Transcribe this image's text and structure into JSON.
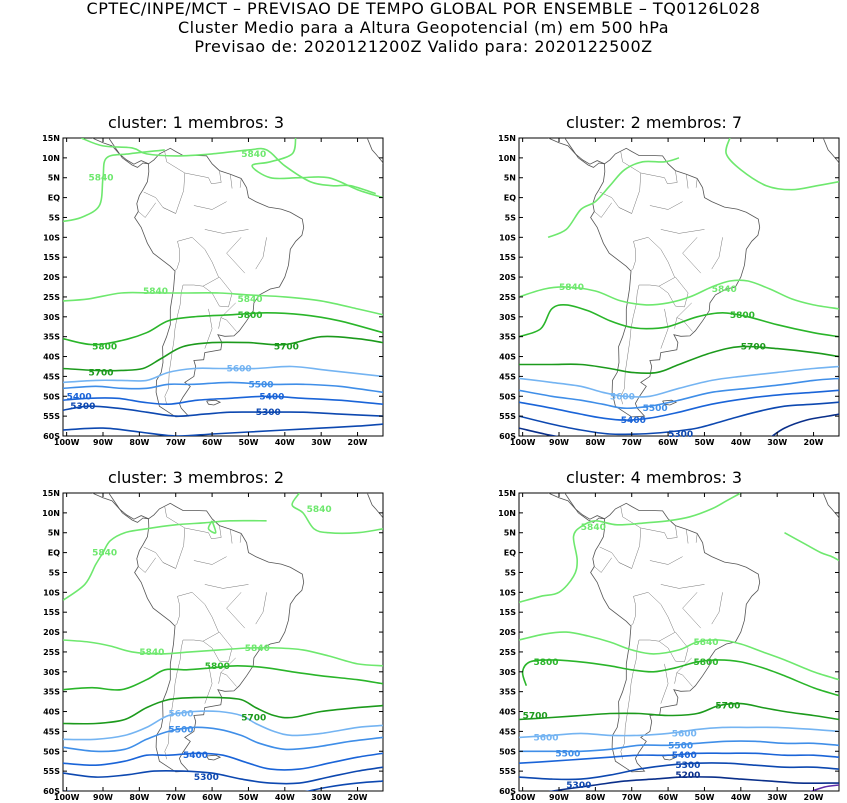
{
  "header": {
    "line1": "CPTEC/INPE/MCT – PREVISAO DE TEMPO GLOBAL POR ENSEMBLE – TQ0126L028",
    "line2": "Cluster Medio para a Altura Geopotencial (m) em 500 hPa",
    "line3": "Previsao de: 2020121200Z    Valido para: 2020122500Z"
  },
  "axes": {
    "lat_labels": [
      "15N",
      "10N",
      "5N",
      "EQ",
      "5S",
      "10S",
      "15S",
      "20S",
      "25S",
      "30S",
      "35S",
      "40S",
      "45S",
      "50S",
      "55S",
      "60S"
    ],
    "lon_labels": [
      "100W",
      "90W",
      "80W",
      "70W",
      "60W",
      "50W",
      "40W",
      "30W",
      "20W"
    ]
  },
  "colors": {
    "c5840": "#6ee86e",
    "c5800": "#2ab52a",
    "c5700": "#1c9a1c",
    "c5600": "#74b4f2",
    "c5500": "#3f8ee8",
    "c5400": "#1a64d8",
    "c5300": "#0d48b0",
    "c5200": "#0a2f8a",
    "c5100": "#5e2ba8"
  },
  "panels": [
    {
      "title": "cluster: 1   membros: 3",
      "labels": [
        {
          "text": "5840",
          "lon": -52,
          "lat": 11,
          "c": "c5840"
        },
        {
          "text": "5840",
          "lon": -94,
          "lat": 5,
          "c": "c5840"
        },
        {
          "text": "5840",
          "lon": -79,
          "lat": -23.5,
          "c": "c5840"
        },
        {
          "text": "5840",
          "lon": -53,
          "lat": -25.5,
          "c": "c5840"
        },
        {
          "text": "5800",
          "lon": -53,
          "lat": -29.5,
          "c": "c5800"
        },
        {
          "text": "5800",
          "lon": -93,
          "lat": -37.5,
          "c": "c5800"
        },
        {
          "text": "5700",
          "lon": -43,
          "lat": -37.5,
          "c": "c5700"
        },
        {
          "text": "5700",
          "lon": -94,
          "lat": -44,
          "c": "c5700"
        },
        {
          "text": "5600",
          "lon": -56,
          "lat": -43,
          "c": "c5600"
        },
        {
          "text": "5500",
          "lon": -50,
          "lat": -47,
          "c": "c5500"
        },
        {
          "text": "5400",
          "lon": -100,
          "lat": -50,
          "c": "c5400"
        },
        {
          "text": "5400",
          "lon": -47,
          "lat": -50,
          "c": "c5400"
        },
        {
          "text": "5300",
          "lon": -99,
          "lat": -52.5,
          "c": "c5300"
        },
        {
          "text": "5300",
          "lon": -48,
          "lat": -54,
          "c": "c5300"
        }
      ]
    },
    {
      "title": "cluster: 2   membros: 7",
      "labels": [
        {
          "text": "5840",
          "lon": -48,
          "lat": -23,
          "c": "c5840"
        },
        {
          "text": "5840",
          "lon": -90,
          "lat": -22.5,
          "c": "c5840"
        },
        {
          "text": "5800",
          "lon": -43,
          "lat": -29.5,
          "c": "c5800"
        },
        {
          "text": "5700",
          "lon": -40,
          "lat": -37.5,
          "c": "c5700"
        },
        {
          "text": "5600",
          "lon": -76,
          "lat": -50,
          "c": "c5600"
        },
        {
          "text": "5500",
          "lon": -67,
          "lat": -53,
          "c": "c5500"
        },
        {
          "text": "5400",
          "lon": -73,
          "lat": -56,
          "c": "c5400"
        },
        {
          "text": "5300",
          "lon": -60,
          "lat": -59.5,
          "c": "c5300"
        }
      ]
    },
    {
      "title": "cluster: 3   membros: 2",
      "labels": [
        {
          "text": "5840",
          "lon": -34,
          "lat": 11,
          "c": "c5840"
        },
        {
          "text": "5840",
          "lon": -93,
          "lat": 0,
          "c": "c5840"
        },
        {
          "text": "5840",
          "lon": -80,
          "lat": -25,
          "c": "c5840"
        },
        {
          "text": "5840",
          "lon": -51,
          "lat": -24,
          "c": "c5840"
        },
        {
          "text": "5800",
          "lon": -62,
          "lat": -28.5,
          "c": "c5800"
        },
        {
          "text": "5700",
          "lon": -52,
          "lat": -41.5,
          "c": "c5700"
        },
        {
          "text": "5600",
          "lon": -72,
          "lat": -40.5,
          "c": "c5600"
        },
        {
          "text": "5500",
          "lon": -72,
          "lat": -44.5,
          "c": "c5500"
        },
        {
          "text": "5400",
          "lon": -68,
          "lat": -51,
          "c": "c5400"
        },
        {
          "text": "5300",
          "lon": -65,
          "lat": -56.5,
          "c": "c5300"
        }
      ]
    },
    {
      "title": "cluster: 4   membros: 3",
      "labels": [
        {
          "text": "5840",
          "lon": -84,
          "lat": 6.5,
          "c": "c5840"
        },
        {
          "text": "5840",
          "lon": -53,
          "lat": -22.5,
          "c": "c5840"
        },
        {
          "text": "5800",
          "lon": -97,
          "lat": -27.5,
          "c": "c5800"
        },
        {
          "text": "5800",
          "lon": -53,
          "lat": -27.5,
          "c": "c5800"
        },
        {
          "text": "5700",
          "lon": -100,
          "lat": -41,
          "c": "c5700"
        },
        {
          "text": "5700",
          "lon": -47,
          "lat": -38.5,
          "c": "c5700"
        },
        {
          "text": "5600",
          "lon": -97,
          "lat": -46.5,
          "c": "c5600"
        },
        {
          "text": "5600",
          "lon": -59,
          "lat": -45.5,
          "c": "c5600"
        },
        {
          "text": "5500",
          "lon": -91,
          "lat": -50.5,
          "c": "c5500"
        },
        {
          "text": "5500",
          "lon": -60,
          "lat": -48.5,
          "c": "c5500"
        },
        {
          "text": "5400",
          "lon": -59,
          "lat": -51,
          "c": "c5400"
        },
        {
          "text": "5300",
          "lon": -58,
          "lat": -53.5,
          "c": "c5300"
        },
        {
          "text": "5300",
          "lon": -88,
          "lat": -58.5,
          "c": "c5300"
        },
        {
          "text": "5200",
          "lon": -58,
          "lat": -56,
          "c": "c5200"
        }
      ]
    }
  ]
}
